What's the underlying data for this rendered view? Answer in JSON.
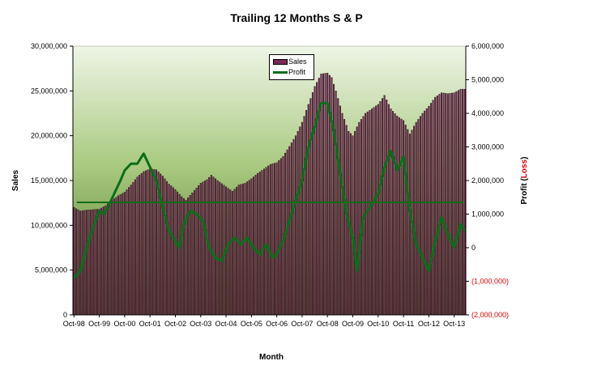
{
  "chart_data": {
    "type": "bar",
    "title": "Trailing 12 Months S & P",
    "xlabel": "Month",
    "ylabel": "Sales",
    "y2label_parts": [
      "Profit (",
      "Loss",
      ")"
    ],
    "ylim": [
      0,
      30000000
    ],
    "y2lim": [
      -2000000,
      6000000
    ],
    "y_ticks": [
      "0",
      "5,000,000",
      "10,000,000",
      "15,000,000",
      "20,000,000",
      "25,000,000",
      "30,000,000"
    ],
    "y2_ticks": [
      "(2,000,000)",
      "(1,000,000)",
      "0",
      "1,000,000",
      "2,000,000",
      "3,000,000",
      "4,000,000",
      "5,000,000",
      "6,000,000"
    ],
    "x_ticks": [
      "Oct-98",
      "Oct-99",
      "Oct-00",
      "Oct-01",
      "Oct-02",
      "Oct-03",
      "Oct-04",
      "Oct-05",
      "Oct-06",
      "Oct-07",
      "Oct-08",
      "Oct-09",
      "Oct-10",
      "Oct-11",
      "Oct-12",
      "Oct-13"
    ],
    "legend": [
      "Sales",
      "Profit"
    ],
    "legend_position": "top-center",
    "colors": {
      "bar": "#7a2a55",
      "profit_line": "#0b6e1a",
      "flat_line": "#0b6e1a",
      "plot_bg_top": "#e9f2dd",
      "plot_bg_mid": "#8db55e",
      "plot_bg_bottom": "#4e7a2a",
      "negative_text": "#e00000"
    },
    "horizontal_line_profit": 1350000,
    "sales_anchors": [
      [
        "Oct-98",
        12000000
      ],
      [
        "Jan-99",
        11600000
      ],
      [
        "Apr-99",
        11700000
      ],
      [
        "Oct-99",
        11800000
      ],
      [
        "Jan-00",
        12200000
      ],
      [
        "Apr-00",
        12800000
      ],
      [
        "Jul-00",
        13300000
      ],
      [
        "Oct-00",
        13700000
      ],
      [
        "Jan-01",
        14500000
      ],
      [
        "Apr-01",
        15400000
      ],
      [
        "Jul-01",
        16000000
      ],
      [
        "Oct-01",
        16300000
      ],
      [
        "Jan-02",
        16200000
      ],
      [
        "Apr-02",
        15500000
      ],
      [
        "Jul-02",
        14600000
      ],
      [
        "Oct-02",
        14000000
      ],
      [
        "Jan-03",
        13200000
      ],
      [
        "Mar-03",
        12800000
      ],
      [
        "Jul-03",
        13900000
      ],
      [
        "Oct-03",
        14700000
      ],
      [
        "Jan-04",
        15100000
      ],
      [
        "Mar-04",
        15600000
      ],
      [
        "Jun-04",
        15000000
      ],
      [
        "Oct-04",
        14300000
      ],
      [
        "Jan-05",
        13800000
      ],
      [
        "Apr-05",
        14500000
      ],
      [
        "Jul-05",
        14700000
      ],
      [
        "Oct-05",
        15200000
      ],
      [
        "Jan-06",
        15800000
      ],
      [
        "Apr-06",
        16300000
      ],
      [
        "Jul-06",
        16800000
      ],
      [
        "Oct-06",
        17000000
      ],
      [
        "Jan-07",
        17700000
      ],
      [
        "Apr-07",
        18800000
      ],
      [
        "Jul-07",
        20000000
      ],
      [
        "Oct-07",
        21500000
      ],
      [
        "Jan-08",
        23500000
      ],
      [
        "Apr-08",
        25500000
      ],
      [
        "Jul-08",
        26900000
      ],
      [
        "Oct-08",
        27000000
      ],
      [
        "Dec-08",
        26500000
      ],
      [
        "Feb-09",
        25000000
      ],
      [
        "May-09",
        22500000
      ],
      [
        "Aug-09",
        20500000
      ],
      [
        "Oct-09",
        20000000
      ],
      [
        "Jan-10",
        21500000
      ],
      [
        "Apr-10",
        22500000
      ],
      [
        "Jul-10",
        23000000
      ],
      [
        "Oct-10",
        23500000
      ],
      [
        "Jan-11",
        24500000
      ],
      [
        "Apr-11",
        23000000
      ],
      [
        "Jul-11",
        22200000
      ],
      [
        "Oct-11",
        21700000
      ],
      [
        "Jan-12",
        20200000
      ],
      [
        "Apr-12",
        21500000
      ],
      [
        "Jul-12",
        22500000
      ],
      [
        "Oct-12",
        23300000
      ],
      [
        "Jan-13",
        24300000
      ],
      [
        "Apr-13",
        24800000
      ],
      [
        "Jul-13",
        24700000
      ],
      [
        "Oct-13",
        24800000
      ],
      [
        "Jan-14",
        25200000
      ]
    ],
    "profit_anchors": [
      [
        "Oct-98",
        -900000
      ],
      [
        "Jan-99",
        -700000
      ],
      [
        "Apr-99",
        0
      ],
      [
        "Jul-99",
        600000
      ],
      [
        "Oct-99",
        1100000
      ],
      [
        "Dec-99",
        1000000
      ],
      [
        "Feb-00",
        1200000
      ],
      [
        "May-00",
        1600000
      ],
      [
        "Aug-00",
        2000000
      ],
      [
        "Oct-00",
        2300000
      ],
      [
        "Jan-01",
        2500000
      ],
      [
        "Apr-01",
        2500000
      ],
      [
        "Jul-01",
        2800000
      ],
      [
        "Oct-01",
        2400000
      ],
      [
        "Jan-02",
        2000000
      ],
      [
        "Apr-02",
        1200000
      ],
      [
        "Jul-02",
        500000
      ],
      [
        "Oct-02",
        200000
      ],
      [
        "Dec-02",
        0
      ],
      [
        "Feb-03",
        700000
      ],
      [
        "May-03",
        1100000
      ],
      [
        "Aug-03",
        1000000
      ],
      [
        "Nov-03",
        800000
      ],
      [
        "Feb-04",
        0
      ],
      [
        "May-04",
        -300000
      ],
      [
        "Aug-04",
        -400000
      ],
      [
        "Nov-04",
        100000
      ],
      [
        "Feb-05",
        300000
      ],
      [
        "May-05",
        100000
      ],
      [
        "Aug-05",
        300000
      ],
      [
        "Nov-05",
        0
      ],
      [
        "Feb-06",
        -200000
      ],
      [
        "May-06",
        100000
      ],
      [
        "Aug-06",
        -300000
      ],
      [
        "Oct-06",
        -200000
      ],
      [
        "Jan-07",
        200000
      ],
      [
        "Apr-07",
        800000
      ],
      [
        "Jul-07",
        1400000
      ],
      [
        "Oct-07",
        2000000
      ],
      [
        "Jan-08",
        3000000
      ],
      [
        "Apr-08",
        3600000
      ],
      [
        "Jul-08",
        4300000
      ],
      [
        "Oct-08",
        4300000
      ],
      [
        "Jan-09",
        3500000
      ],
      [
        "Apr-09",
        2200000
      ],
      [
        "Jul-09",
        1000000
      ],
      [
        "Oct-09",
        300000
      ],
      [
        "Dec-09",
        -700000
      ],
      [
        "Mar-10",
        900000
      ],
      [
        "Jun-10",
        1200000
      ],
      [
        "Oct-10",
        1600000
      ],
      [
        "Jan-11",
        2400000
      ],
      [
        "Apr-11",
        2900000
      ],
      [
        "Jul-11",
        2300000
      ],
      [
        "Oct-11",
        2700000
      ],
      [
        "Jan-12",
        1100000
      ],
      [
        "Apr-12",
        100000
      ],
      [
        "Jul-12",
        -300000
      ],
      [
        "Oct-12",
        -700000
      ],
      [
        "Jan-13",
        200000
      ],
      [
        "Apr-13",
        900000
      ],
      [
        "Jul-13",
        400000
      ],
      [
        "Oct-13",
        0
      ],
      [
        "Jan-14",
        700000
      ],
      [
        "Mar-14",
        500000
      ]
    ]
  }
}
